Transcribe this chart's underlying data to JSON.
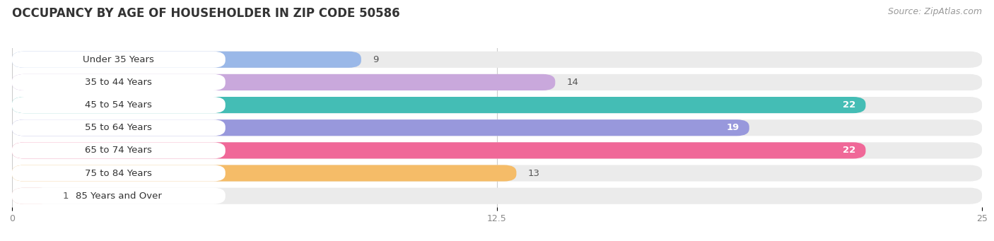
{
  "title": "OCCUPANCY BY AGE OF HOUSEHOLDER IN ZIP CODE 50586",
  "source": "Source: ZipAtlas.com",
  "categories": [
    "Under 35 Years",
    "35 to 44 Years",
    "45 to 54 Years",
    "55 to 64 Years",
    "65 to 74 Years",
    "75 to 84 Years",
    "85 Years and Over"
  ],
  "values": [
    9,
    14,
    22,
    19,
    22,
    13,
    1
  ],
  "bar_colors": [
    "#9ab8e8",
    "#c9a8dc",
    "#44bdb5",
    "#9898dc",
    "#f06898",
    "#f5bc68",
    "#f0b8b8"
  ],
  "row_bg_color": "#ebebeb",
  "xlim": [
    0,
    25
  ],
  "xticks": [
    0,
    12.5,
    25
  ],
  "title_fontsize": 12,
  "source_fontsize": 9,
  "label_fontsize": 9.5,
  "value_fontsize": 9.5,
  "background_color": "#ffffff"
}
